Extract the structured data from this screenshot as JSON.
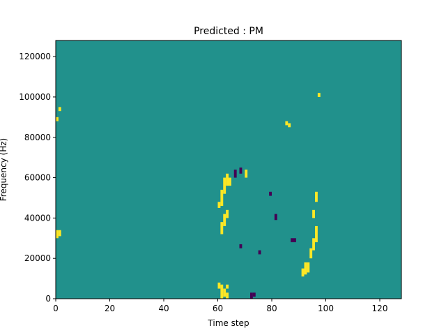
{
  "chart_data": {
    "type": "heatmap",
    "title": "Predicted : PM",
    "xlabel": "Time step",
    "ylabel": "Frequency (Hz)",
    "xlim": [
      0,
      128
    ],
    "ylim": [
      0,
      128000
    ],
    "x_ticks": [
      0,
      20,
      40,
      60,
      80,
      100,
      120
    ],
    "y_ticks": [
      0,
      20000,
      40000,
      60000,
      80000,
      100000,
      120000
    ],
    "x_tick_labels": [
      "0",
      "20",
      "40",
      "60",
      "80",
      "100",
      "120"
    ],
    "y_tick_labels": [
      "0",
      "20000",
      "40000",
      "60000",
      "80000",
      "100000",
      "120000"
    ],
    "grid": false,
    "colormap": "viridis",
    "colors": {
      "background": "#21918c",
      "high": "#fde725",
      "low": "#440154"
    },
    "cells": [
      [
        61,
        0,
        5,
        "high"
      ],
      [
        62,
        1,
        4,
        "high"
      ],
      [
        63,
        0,
        3,
        "high"
      ],
      [
        72,
        0,
        3,
        "low"
      ],
      [
        73,
        1,
        2,
        "low"
      ],
      [
        60,
        5,
        3,
        "high"
      ],
      [
        61,
        5,
        2,
        "high"
      ],
      [
        63,
        5,
        2,
        "high"
      ],
      [
        91,
        11,
        4,
        "high"
      ],
      [
        92,
        12,
        6,
        "high"
      ],
      [
        93,
        13,
        5,
        "high"
      ],
      [
        61,
        32,
        6,
        "high"
      ],
      [
        62,
        36,
        6,
        "high"
      ],
      [
        63,
        40,
        4,
        "high"
      ],
      [
        60,
        45,
        3,
        "high"
      ],
      [
        61,
        46,
        8,
        "high"
      ],
      [
        62,
        52,
        8,
        "high"
      ],
      [
        63,
        56,
        6,
        "high"
      ],
      [
        64,
        56,
        4,
        "high"
      ],
      [
        66,
        60,
        4,
        "low"
      ],
      [
        68,
        62,
        3,
        "low"
      ],
      [
        70,
        60,
        4,
        "high"
      ],
      [
        94,
        20,
        5,
        "high"
      ],
      [
        95,
        24,
        6,
        "high"
      ],
      [
        96,
        28,
        8,
        "high"
      ],
      [
        95,
        40,
        4,
        "high"
      ],
      [
        96,
        48,
        5,
        "high"
      ],
      [
        0,
        30,
        4,
        "high"
      ],
      [
        1,
        31,
        3,
        "high"
      ],
      [
        0,
        88,
        2,
        "high"
      ],
      [
        1,
        93,
        2,
        "high"
      ],
      [
        97,
        100,
        2,
        "high"
      ],
      [
        79,
        51,
        2,
        "low"
      ],
      [
        81,
        39,
        3,
        "low"
      ],
      [
        85,
        86,
        2,
        "high"
      ],
      [
        86,
        85,
        2,
        "high"
      ],
      [
        68,
        25,
        2,
        "low"
      ],
      [
        75,
        22,
        2,
        "low"
      ],
      [
        87,
        28,
        2,
        "low"
      ],
      [
        88,
        28,
        2,
        "low"
      ]
    ]
  }
}
